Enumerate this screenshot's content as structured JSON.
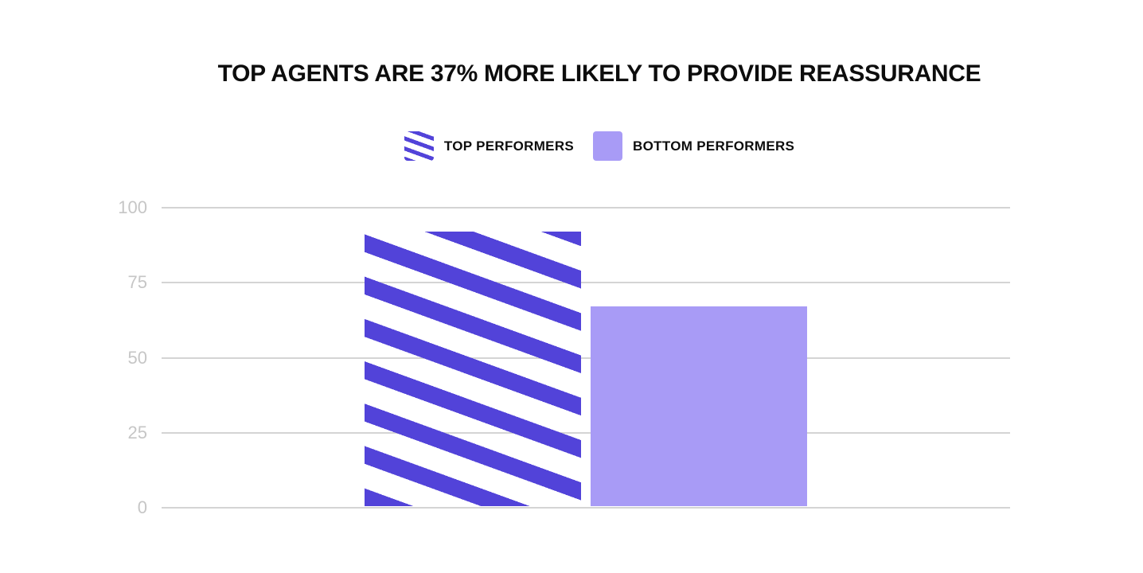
{
  "title": "TOP AGENTS ARE 37% MORE LIKELY TO PROVIDE REASSURANCE",
  "legend": {
    "items": [
      {
        "label": "TOP PERFORMERS",
        "swatch": "striped"
      },
      {
        "label": "BOTTOM PERFORMERS",
        "swatch": "solid"
      }
    ]
  },
  "colors": {
    "stripe_purple": "#5243d9",
    "solid_purple": "#a89bf6",
    "gridline_gray": "#d4d4d4",
    "tick_label_gray": "#c6c6c6",
    "title_black": "#0d0d0d",
    "background": "#ffffff"
  },
  "chart_data": {
    "type": "bar",
    "categories": [
      "TOP PERFORMERS",
      "BOTTOM PERFORMERS"
    ],
    "values": [
      92,
      67
    ],
    "title": "TOP AGENTS ARE 37% MORE LIKELY TO PROVIDE REASSURANCE",
    "xlabel": "",
    "ylabel": "",
    "ylim": [
      0,
      100
    ],
    "yticks": [
      0,
      25,
      50,
      75,
      100
    ],
    "grid": true,
    "legend_position": "top-center",
    "bar_styles": [
      "striped",
      "solid"
    ]
  }
}
